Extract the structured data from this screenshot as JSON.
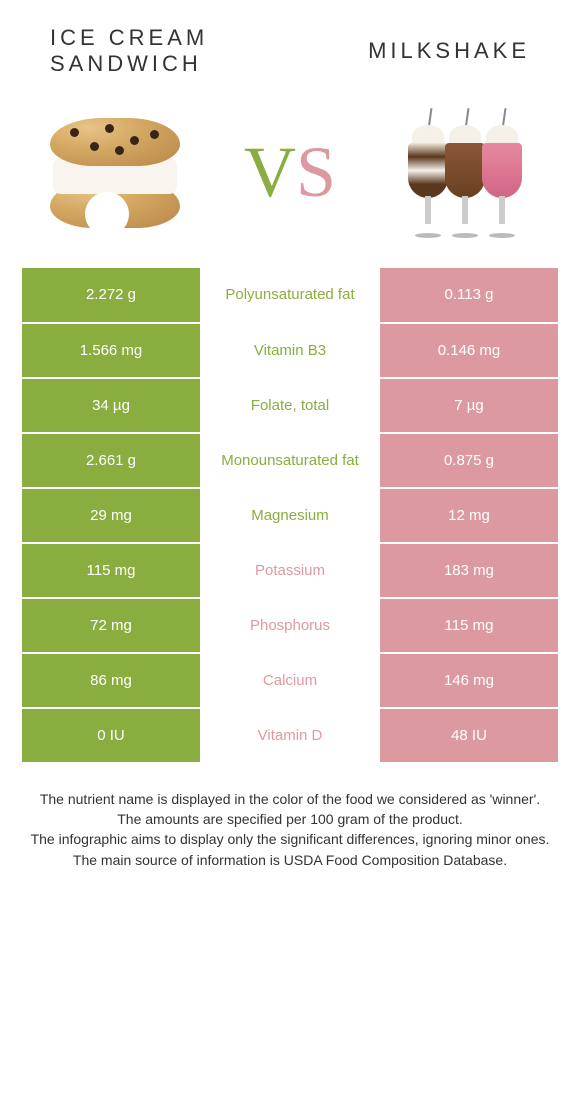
{
  "header": {
    "left_title_line1": "Ice Cream",
    "left_title_line2": "Sandwich",
    "right_title": "Milkshake",
    "vs_v": "V",
    "vs_s": "S"
  },
  "colors": {
    "left": "#8aad3f",
    "right": "#dd99a0",
    "left_text_in_mid": "#8aad3f",
    "right_text_in_mid": "#dd99a0"
  },
  "rows": [
    {
      "left": "2.272 g",
      "label": "Polyunsaturated fat",
      "right": "0.113 g",
      "winner": "left"
    },
    {
      "left": "1.566 mg",
      "label": "Vitamin B3",
      "right": "0.146 mg",
      "winner": "left"
    },
    {
      "left": "34 µg",
      "label": "Folate, total",
      "right": "7 µg",
      "winner": "left"
    },
    {
      "left": "2.661 g",
      "label": "Monounsaturated fat",
      "right": "0.875 g",
      "winner": "left"
    },
    {
      "left": "29 mg",
      "label": "Magnesium",
      "right": "12 mg",
      "winner": "left"
    },
    {
      "left": "115 mg",
      "label": "Potassium",
      "right": "183 mg",
      "winner": "right"
    },
    {
      "left": "72 mg",
      "label": "Phosphorus",
      "right": "115 mg",
      "winner": "right"
    },
    {
      "left": "86 mg",
      "label": "Calcium",
      "right": "146 mg",
      "winner": "right"
    },
    {
      "left": "0 IU",
      "label": "Vitamin D",
      "right": "48 IU",
      "winner": "right"
    }
  ],
  "footer": {
    "line1": "The nutrient name is displayed in the color of the food we considered as 'winner'.",
    "line2": "The amounts are specified per 100 gram of the product.",
    "line3": "The infographic aims to display only the significant differences, ignoring minor ones.",
    "line4": "The main source of information is USDA Food Composition Database."
  }
}
